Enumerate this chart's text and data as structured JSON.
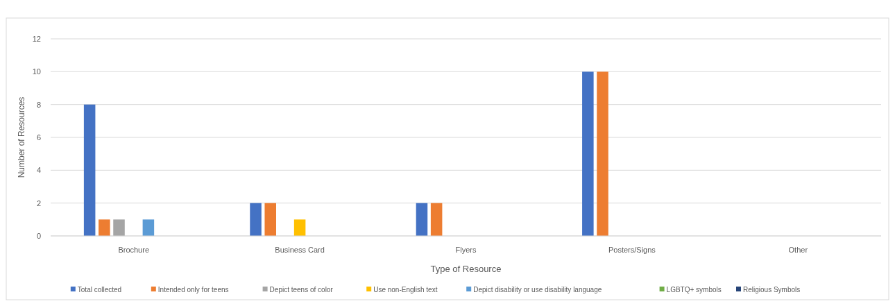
{
  "chart_data": {
    "type": "bar",
    "xlabel": "Type of Resource",
    "ylabel": "Number of Resources",
    "categories": [
      "Brochure",
      "Business Card",
      "Flyers",
      "Posters/Signs",
      "Other"
    ],
    "series": [
      {
        "name": "Total collected",
        "color": "#4472c4",
        "values": [
          8,
          2,
          2,
          10,
          0
        ]
      },
      {
        "name": "Intended only for teens",
        "color": "#ed7d31",
        "values": [
          1,
          2,
          2,
          10,
          0
        ]
      },
      {
        "name": "Depict teens of color",
        "color": "#a5a5a5",
        "values": [
          1,
          0,
          0,
          0,
          0
        ]
      },
      {
        "name": "Use non-English text",
        "color": "#ffc000",
        "values": [
          0,
          1,
          0,
          0,
          0
        ]
      },
      {
        "name": "Depict disability or use disability language",
        "color": "#5b9bd5",
        "values": [
          1,
          0,
          0,
          0,
          0
        ]
      },
      {
        "name": "LGBTQ+ symbols",
        "color": "#70ad47",
        "values": [
          0,
          0,
          0,
          0,
          0
        ]
      },
      {
        "name": "Religious Symbols",
        "color": "#264478",
        "values": [
          0,
          0,
          0,
          0,
          0
        ]
      }
    ],
    "ylim": [
      0,
      12
    ],
    "yticks": [
      0,
      2,
      4,
      6,
      8,
      10,
      12
    ],
    "grid": "y",
    "legend": "bottom"
  }
}
